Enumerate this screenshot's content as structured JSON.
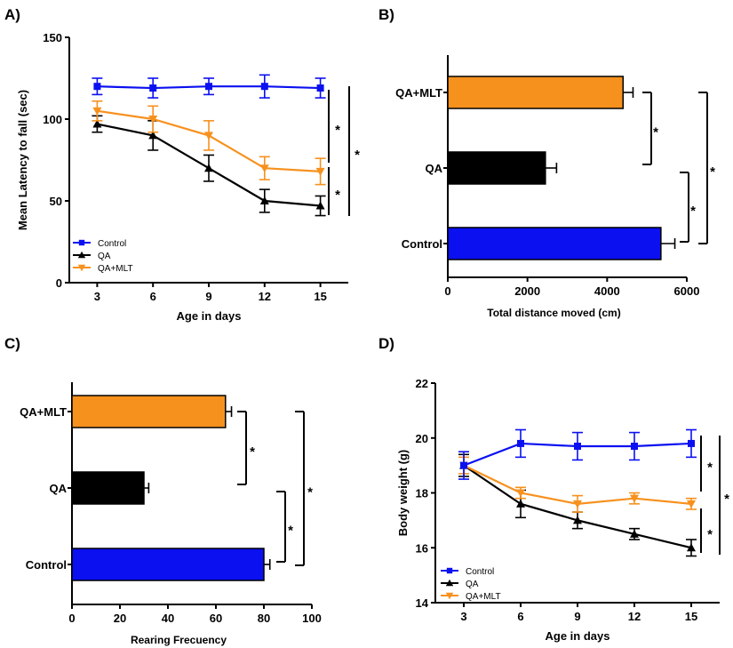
{
  "colors": {
    "control": "#0b10f0",
    "qa": "#000000",
    "qa_mlt": "#f7911e"
  },
  "chart_data": [
    {
      "panel": "A)",
      "type": "line",
      "xlabel": "Age in days",
      "ylabel": "Mean Latency to fall (sec)",
      "x": [
        3,
        6,
        9,
        12,
        15
      ],
      "xticks": [
        "3",
        "6",
        "9",
        "12",
        "15"
      ],
      "xlim": [
        1.5,
        16.5
      ],
      "ylim": [
        0,
        150
      ],
      "yticks": [
        "0",
        "50",
        "100",
        "150"
      ],
      "series": [
        {
          "name": "Control",
          "color": "#0b10f0",
          "marker": "square",
          "values": [
            120,
            119,
            120,
            120,
            119
          ],
          "errors": [
            5,
            6,
            5,
            7,
            6
          ]
        },
        {
          "name": "QA",
          "color": "#000000",
          "marker": "triangle-up",
          "values": [
            97,
            90,
            70,
            50,
            47
          ],
          "errors": [
            5,
            9,
            8,
            7,
            6
          ]
        },
        {
          "name": "QA+MLT",
          "color": "#f7911e",
          "marker": "triangle-down",
          "values": [
            105,
            100,
            90,
            70,
            68
          ],
          "errors": [
            6,
            8,
            9,
            7,
            8
          ]
        }
      ],
      "legend_position": "bottom-left",
      "significance": [
        "*",
        "*",
        "*"
      ]
    },
    {
      "panel": "B)",
      "type": "bar",
      "orientation": "horizontal",
      "xlabel": "Total distance moved (cm)",
      "categories": [
        "QA+MLT",
        "QA",
        "Control"
      ],
      "values": [
        4400,
        2450,
        5350
      ],
      "errors": [
        250,
        280,
        350
      ],
      "colors": [
        "#f7911e",
        "#000000",
        "#0b10f0"
      ],
      "xlim": [
        0,
        6000
      ],
      "xticks": [
        "0",
        "2000",
        "4000",
        "6000"
      ],
      "significance": [
        "*",
        "*",
        "*"
      ]
    },
    {
      "panel": "C)",
      "type": "bar",
      "orientation": "horizontal",
      "xlabel": "Rearing Frecuency",
      "categories": [
        "QA+MLT",
        "QA",
        "Control"
      ],
      "values": [
        64,
        30,
        80
      ],
      "errors": [
        2.5,
        2,
        2.5
      ],
      "colors": [
        "#f7911e",
        "#000000",
        "#0b10f0"
      ],
      "xlim": [
        0,
        100
      ],
      "xticks": [
        "0",
        "20",
        "40",
        "60",
        "80",
        "100"
      ],
      "significance": [
        "*",
        "*",
        "*"
      ]
    },
    {
      "panel": "D)",
      "type": "line",
      "xlabel": "Age in days",
      "ylabel": "Body weight (g)",
      "x": [
        3,
        6,
        9,
        12,
        15
      ],
      "xticks": [
        "3",
        "6",
        "9",
        "12",
        "15"
      ],
      "xlim": [
        1.5,
        16.5
      ],
      "ylim": [
        14,
        22
      ],
      "yticks": [
        "14",
        "16",
        "18",
        "20",
        "22"
      ],
      "series": [
        {
          "name": "Control",
          "color": "#0b10f0",
          "marker": "square",
          "values": [
            19.0,
            19.8,
            19.7,
            19.7,
            19.8
          ],
          "errors": [
            0.5,
            0.5,
            0.5,
            0.5,
            0.5
          ]
        },
        {
          "name": "QA",
          "color": "#000000",
          "marker": "triangle-up",
          "values": [
            19.0,
            17.6,
            17.0,
            16.5,
            16.0
          ],
          "errors": [
            0.4,
            0.5,
            0.3,
            0.2,
            0.3
          ]
        },
        {
          "name": "QA+MLT",
          "color": "#f7911e",
          "marker": "triangle-down",
          "values": [
            19.0,
            18.0,
            17.6,
            17.8,
            17.6
          ],
          "errors": [
            0.3,
            0.2,
            0.3,
            0.2,
            0.2
          ]
        }
      ],
      "legend_position": "bottom-left",
      "significance": [
        "*",
        "*",
        "*"
      ]
    }
  ]
}
